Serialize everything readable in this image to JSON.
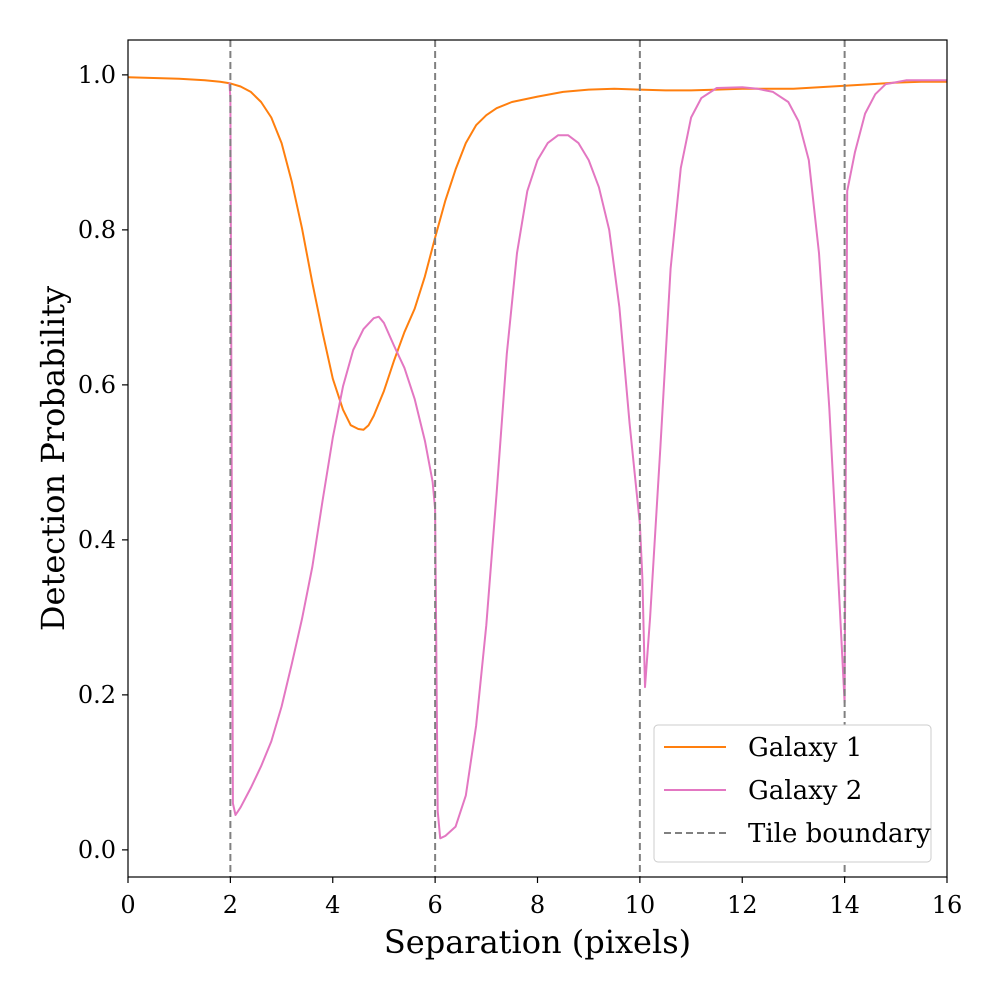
{
  "chart_data": {
    "type": "line",
    "title": "",
    "xlabel": "Separation (pixels)",
    "ylabel": "Detection Probability",
    "xlim": [
      0,
      16
    ],
    "ylim": [
      -0.035,
      1.045
    ],
    "xticks": [
      0,
      2,
      4,
      6,
      8,
      10,
      12,
      14,
      16
    ],
    "xtick_labels": [
      "0",
      "2",
      "4",
      "6",
      "8",
      "10",
      "12",
      "14",
      "16"
    ],
    "yticks": [
      0.0,
      0.2,
      0.4,
      0.6,
      0.8,
      1.0
    ],
    "ytick_labels": [
      "0.0",
      "0.2",
      "0.4",
      "0.6",
      "0.8",
      "1.0"
    ],
    "grid": false,
    "legend_position": "lower-right",
    "series": [
      {
        "name": "Galaxy 1",
        "color": "#ff7f0e",
        "style": "solid",
        "points": [
          [
            0.0,
            0.997
          ],
          [
            0.5,
            0.996
          ],
          [
            1.0,
            0.995
          ],
          [
            1.5,
            0.993
          ],
          [
            1.8,
            0.991
          ],
          [
            2.0,
            0.989
          ],
          [
            2.2,
            0.985
          ],
          [
            2.4,
            0.978
          ],
          [
            2.6,
            0.965
          ],
          [
            2.8,
            0.945
          ],
          [
            3.0,
            0.912
          ],
          [
            3.2,
            0.862
          ],
          [
            3.4,
            0.802
          ],
          [
            3.6,
            0.732
          ],
          [
            3.8,
            0.668
          ],
          [
            4.0,
            0.608
          ],
          [
            4.2,
            0.568
          ],
          [
            4.35,
            0.548
          ],
          [
            4.5,
            0.543
          ],
          [
            4.6,
            0.542
          ],
          [
            4.7,
            0.548
          ],
          [
            4.8,
            0.56
          ],
          [
            5.0,
            0.592
          ],
          [
            5.2,
            0.632
          ],
          [
            5.4,
            0.668
          ],
          [
            5.6,
            0.698
          ],
          [
            5.8,
            0.74
          ],
          [
            6.0,
            0.79
          ],
          [
            6.2,
            0.838
          ],
          [
            6.4,
            0.878
          ],
          [
            6.6,
            0.912
          ],
          [
            6.8,
            0.935
          ],
          [
            7.0,
            0.948
          ],
          [
            7.2,
            0.957
          ],
          [
            7.5,
            0.965
          ],
          [
            8.0,
            0.972
          ],
          [
            8.5,
            0.978
          ],
          [
            9.0,
            0.981
          ],
          [
            9.5,
            0.982
          ],
          [
            10.0,
            0.981
          ],
          [
            10.5,
            0.98
          ],
          [
            11.0,
            0.98
          ],
          [
            11.5,
            0.981
          ],
          [
            12.0,
            0.982
          ],
          [
            12.5,
            0.982
          ],
          [
            13.0,
            0.982
          ],
          [
            13.5,
            0.984
          ],
          [
            14.0,
            0.986
          ],
          [
            14.5,
            0.988
          ],
          [
            15.0,
            0.99
          ],
          [
            15.5,
            0.991
          ],
          [
            16.0,
            0.991
          ]
        ]
      },
      {
        "name": "Galaxy 2",
        "color": "#e377c2",
        "style": "solid",
        "points": [
          [
            1.98,
            0.99
          ],
          [
            2.0,
            0.97
          ],
          [
            2.05,
            0.06
          ],
          [
            2.1,
            0.045
          ],
          [
            2.2,
            0.055
          ],
          [
            2.4,
            0.08
          ],
          [
            2.6,
            0.108
          ],
          [
            2.8,
            0.14
          ],
          [
            3.0,
            0.185
          ],
          [
            3.2,
            0.24
          ],
          [
            3.4,
            0.298
          ],
          [
            3.6,
            0.365
          ],
          [
            3.8,
            0.45
          ],
          [
            4.0,
            0.532
          ],
          [
            4.2,
            0.598
          ],
          [
            4.4,
            0.645
          ],
          [
            4.6,
            0.672
          ],
          [
            4.8,
            0.686
          ],
          [
            4.9,
            0.688
          ],
          [
            5.0,
            0.68
          ],
          [
            5.2,
            0.65
          ],
          [
            5.4,
            0.622
          ],
          [
            5.6,
            0.582
          ],
          [
            5.8,
            0.528
          ],
          [
            5.95,
            0.475
          ],
          [
            6.0,
            0.44
          ],
          [
            6.05,
            0.05
          ],
          [
            6.1,
            0.015
          ],
          [
            6.2,
            0.018
          ],
          [
            6.4,
            0.03
          ],
          [
            6.6,
            0.07
          ],
          [
            6.8,
            0.16
          ],
          [
            7.0,
            0.29
          ],
          [
            7.2,
            0.46
          ],
          [
            7.4,
            0.64
          ],
          [
            7.6,
            0.77
          ],
          [
            7.8,
            0.85
          ],
          [
            8.0,
            0.89
          ],
          [
            8.2,
            0.912
          ],
          [
            8.4,
            0.922
          ],
          [
            8.6,
            0.922
          ],
          [
            8.8,
            0.912
          ],
          [
            9.0,
            0.89
          ],
          [
            9.2,
            0.855
          ],
          [
            9.4,
            0.8
          ],
          [
            9.6,
            0.7
          ],
          [
            9.8,
            0.55
          ],
          [
            10.0,
            0.42
          ],
          [
            10.05,
            0.35
          ],
          [
            10.1,
            0.21
          ],
          [
            10.2,
            0.3
          ],
          [
            10.4,
            0.52
          ],
          [
            10.6,
            0.75
          ],
          [
            10.8,
            0.88
          ],
          [
            11.0,
            0.945
          ],
          [
            11.2,
            0.97
          ],
          [
            11.5,
            0.983
          ],
          [
            12.0,
            0.984
          ],
          [
            12.3,
            0.982
          ],
          [
            12.6,
            0.978
          ],
          [
            12.9,
            0.965
          ],
          [
            13.1,
            0.94
          ],
          [
            13.3,
            0.89
          ],
          [
            13.5,
            0.77
          ],
          [
            13.7,
            0.57
          ],
          [
            13.9,
            0.32
          ],
          [
            14.0,
            0.19
          ],
          [
            14.05,
            0.85
          ],
          [
            14.2,
            0.9
          ],
          [
            14.4,
            0.95
          ],
          [
            14.6,
            0.975
          ],
          [
            14.8,
            0.988
          ],
          [
            15.2,
            0.993
          ],
          [
            16.0,
            0.993
          ]
        ]
      },
      {
        "name": "Tile boundary",
        "color": "#808080",
        "style": "dashed",
        "x_values": [
          2,
          6,
          10,
          14
        ]
      }
    ]
  }
}
